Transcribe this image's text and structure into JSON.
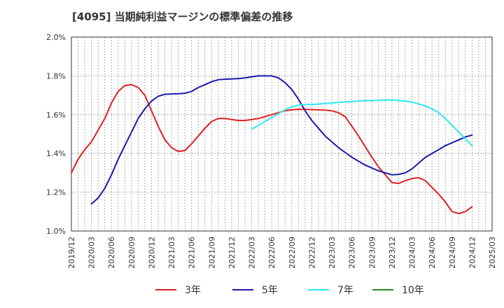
{
  "chart_data": {
    "type": "line",
    "title": "[4095]  当期純利益マージンの標準偏差の推移",
    "xlabel": "",
    "ylabel": "",
    "ylim": [
      1.0,
      2.0
    ],
    "y_ticks": [
      1.0,
      1.2,
      1.4,
      1.6,
      1.8,
      2.0
    ],
    "y_tick_labels": [
      "1.0%",
      "1.2%",
      "1.4%",
      "1.6%",
      "1.8%",
      "2.0%"
    ],
    "x_range": [
      "2019-12",
      "2025-03"
    ],
    "x_tick_labels": [
      "2019/12",
      "2020/03",
      "2020/06",
      "2020/09",
      "2020/12",
      "2021/03",
      "2021/06",
      "2021/09",
      "2021/12",
      "2022/03",
      "2022/06",
      "2022/09",
      "2022/12",
      "2023/03",
      "2023/06",
      "2023/09",
      "2023/12",
      "2024/03",
      "2024/06",
      "2024/09",
      "2024/12",
      "2025/03"
    ],
    "grid": true,
    "legend_position": "bottom",
    "series": [
      {
        "name": "3年",
        "color": "#e02020",
        "x": [
          "2019-12",
          "2020-01",
          "2020-02",
          "2020-03",
          "2020-04",
          "2020-05",
          "2020-06",
          "2020-07",
          "2020-08",
          "2020-09",
          "2020-10",
          "2020-11",
          "2020-12",
          "2021-01",
          "2021-02",
          "2021-03",
          "2021-04",
          "2021-05",
          "2021-06",
          "2021-07",
          "2021-08",
          "2021-09",
          "2021-10",
          "2021-11",
          "2021-12",
          "2022-01",
          "2022-02",
          "2022-03",
          "2022-04",
          "2022-05",
          "2022-06",
          "2022-07",
          "2022-08",
          "2022-09",
          "2022-10",
          "2022-11",
          "2022-12",
          "2023-01",
          "2023-02",
          "2023-03",
          "2023-04",
          "2023-05",
          "2023-06",
          "2023-07",
          "2023-08",
          "2023-09",
          "2023-10",
          "2023-11",
          "2023-12",
          "2024-01",
          "2024-02",
          "2024-03",
          "2024-04",
          "2024-05",
          "2024-06",
          "2024-07",
          "2024-08",
          "2024-09",
          "2024-10",
          "2024-11",
          "2024-12"
        ],
        "values": [
          1.3,
          1.37,
          1.42,
          1.46,
          1.52,
          1.58,
          1.66,
          1.72,
          1.75,
          1.755,
          1.74,
          1.7,
          1.62,
          1.54,
          1.47,
          1.43,
          1.41,
          1.415,
          1.45,
          1.49,
          1.53,
          1.565,
          1.58,
          1.58,
          1.575,
          1.57,
          1.57,
          1.575,
          1.58,
          1.59,
          1.6,
          1.61,
          1.62,
          1.625,
          1.627,
          1.627,
          1.626,
          1.625,
          1.623,
          1.62,
          1.61,
          1.59,
          1.54,
          1.49,
          1.435,
          1.38,
          1.33,
          1.29,
          1.25,
          1.245,
          1.26,
          1.27,
          1.275,
          1.26,
          1.225,
          1.19,
          1.15,
          1.1,
          1.09,
          1.1,
          1.125
        ]
      },
      {
        "name": "5年",
        "color": "#1a1aaa",
        "x": [
          "2020-03",
          "2020-04",
          "2020-05",
          "2020-06",
          "2020-07",
          "2020-08",
          "2020-09",
          "2020-10",
          "2020-11",
          "2020-12",
          "2021-01",
          "2021-02",
          "2021-03",
          "2021-04",
          "2021-05",
          "2021-06",
          "2021-07",
          "2021-08",
          "2021-09",
          "2021-10",
          "2021-11",
          "2021-12",
          "2022-01",
          "2022-02",
          "2022-03",
          "2022-04",
          "2022-05",
          "2022-06",
          "2022-07",
          "2022-08",
          "2022-09",
          "2022-10",
          "2022-11",
          "2022-12",
          "2023-01",
          "2023-02",
          "2023-03",
          "2023-04",
          "2023-05",
          "2023-06",
          "2023-07",
          "2023-08",
          "2023-09",
          "2023-10",
          "2023-11",
          "2023-12",
          "2024-01",
          "2024-02",
          "2024-03",
          "2024-04",
          "2024-05",
          "2024-06",
          "2024-07",
          "2024-08",
          "2024-09",
          "2024-10",
          "2024-11",
          "2024-12"
        ],
        "values": [
          1.14,
          1.17,
          1.22,
          1.29,
          1.37,
          1.44,
          1.51,
          1.58,
          1.63,
          1.67,
          1.695,
          1.705,
          1.707,
          1.708,
          1.71,
          1.72,
          1.74,
          1.755,
          1.77,
          1.78,
          1.783,
          1.784,
          1.786,
          1.79,
          1.795,
          1.8,
          1.8,
          1.8,
          1.79,
          1.765,
          1.73,
          1.68,
          1.62,
          1.57,
          1.53,
          1.49,
          1.46,
          1.43,
          1.405,
          1.38,
          1.36,
          1.34,
          1.325,
          1.31,
          1.3,
          1.29,
          1.292,
          1.3,
          1.32,
          1.35,
          1.38,
          1.4,
          1.42,
          1.44,
          1.455,
          1.47,
          1.485,
          1.495
        ]
      },
      {
        "name": "7年",
        "color": "#30e8f0",
        "x": [
          "2022-03",
          "2022-04",
          "2022-05",
          "2022-06",
          "2022-07",
          "2022-08",
          "2022-09",
          "2022-10",
          "2022-11",
          "2022-12",
          "2023-01",
          "2023-02",
          "2023-03",
          "2023-04",
          "2023-05",
          "2023-06",
          "2023-07",
          "2023-08",
          "2023-09",
          "2023-10",
          "2023-11",
          "2023-12",
          "2024-01",
          "2024-02",
          "2024-03",
          "2024-04",
          "2024-05",
          "2024-06",
          "2024-07",
          "2024-08",
          "2024-09",
          "2024-10",
          "2024-11",
          "2024-12"
        ],
        "values": [
          1.525,
          1.545,
          1.565,
          1.585,
          1.605,
          1.625,
          1.64,
          1.65,
          1.652,
          1.653,
          1.655,
          1.658,
          1.66,
          1.663,
          1.666,
          1.668,
          1.67,
          1.672,
          1.673,
          1.674,
          1.675,
          1.675,
          1.673,
          1.67,
          1.665,
          1.655,
          1.645,
          1.63,
          1.61,
          1.58,
          1.545,
          1.51,
          1.475,
          1.44
        ]
      },
      {
        "name": "10年",
        "color": "#228822",
        "x": [],
        "values": []
      }
    ]
  }
}
